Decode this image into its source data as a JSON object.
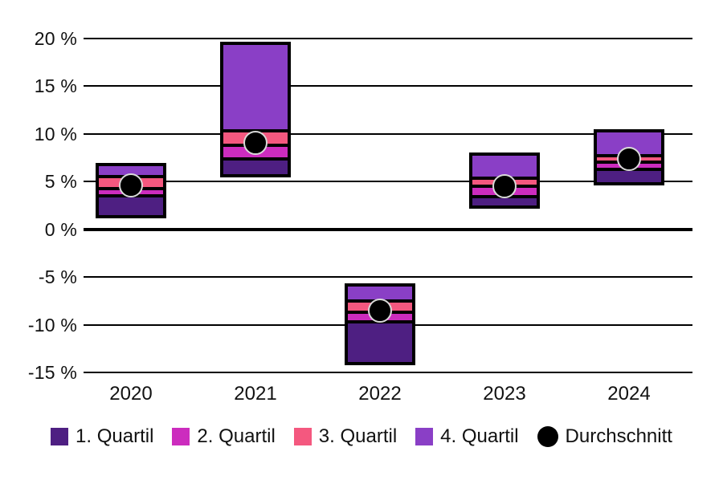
{
  "chart_data": {
    "type": "bar",
    "subtype": "floating-stacked-quartile-box",
    "unit": "%",
    "grid": true,
    "legend_position": "bottom",
    "categories": [
      "2020",
      "2021",
      "2022",
      "2023",
      "2024"
    ],
    "series": [
      {
        "category": "2020",
        "min": 1.3,
        "q1": 3.5,
        "median": 4.3,
        "q3": 5.5,
        "max": 6.8,
        "avg": 4.6
      },
      {
        "category": "2021",
        "min": 5.6,
        "q1": 7.4,
        "median": 8.8,
        "q3": 10.3,
        "max": 19.5,
        "avg": 9.1
      },
      {
        "category": "2022",
        "min": -14.1,
        "q1": -9.7,
        "median": -8.7,
        "q3": -7.5,
        "max": -5.8,
        "avg": -8.5
      },
      {
        "category": "2023",
        "min": 2.3,
        "q1": 3.4,
        "median": 4.5,
        "q3": 5.4,
        "max": 7.9,
        "avg": 4.5
      },
      {
        "category": "2024",
        "min": 4.8,
        "q1": 6.3,
        "median": 7.0,
        "q3": 7.7,
        "max": 10.3,
        "avg": 7.4
      }
    ],
    "y_axis": {
      "ticks": [
        20,
        15,
        10,
        5,
        0,
        -5,
        -10,
        -15
      ],
      "tick_labels": [
        "20 %",
        "15 %",
        "10 %",
        "5 %",
        "0 %",
        "-5 %",
        "-10 %",
        "-15 %"
      ],
      "range": [
        -17.5,
        22
      ]
    },
    "colors": {
      "q1": "#4e1f82",
      "q2": "#cc2cbe",
      "q3": "#f4587f",
      "q4": "#8a3fc6",
      "avg": "#000000",
      "avg_ring": "#d9d9d9",
      "grid": "#000000",
      "text": "#111111",
      "background": "#ffffff"
    },
    "legend": [
      {
        "label": "1. Quartil",
        "color": "#4e1f82",
        "shape": "square"
      },
      {
        "label": "2. Quartil",
        "color": "#cc2cbe",
        "shape": "square"
      },
      {
        "label": "3. Quartil",
        "color": "#f4587f",
        "shape": "square"
      },
      {
        "label": "4. Quartil",
        "color": "#8a3fc6",
        "shape": "square"
      },
      {
        "label": "Durchschnitt",
        "color": "#000000",
        "shape": "circle"
      }
    ]
  }
}
